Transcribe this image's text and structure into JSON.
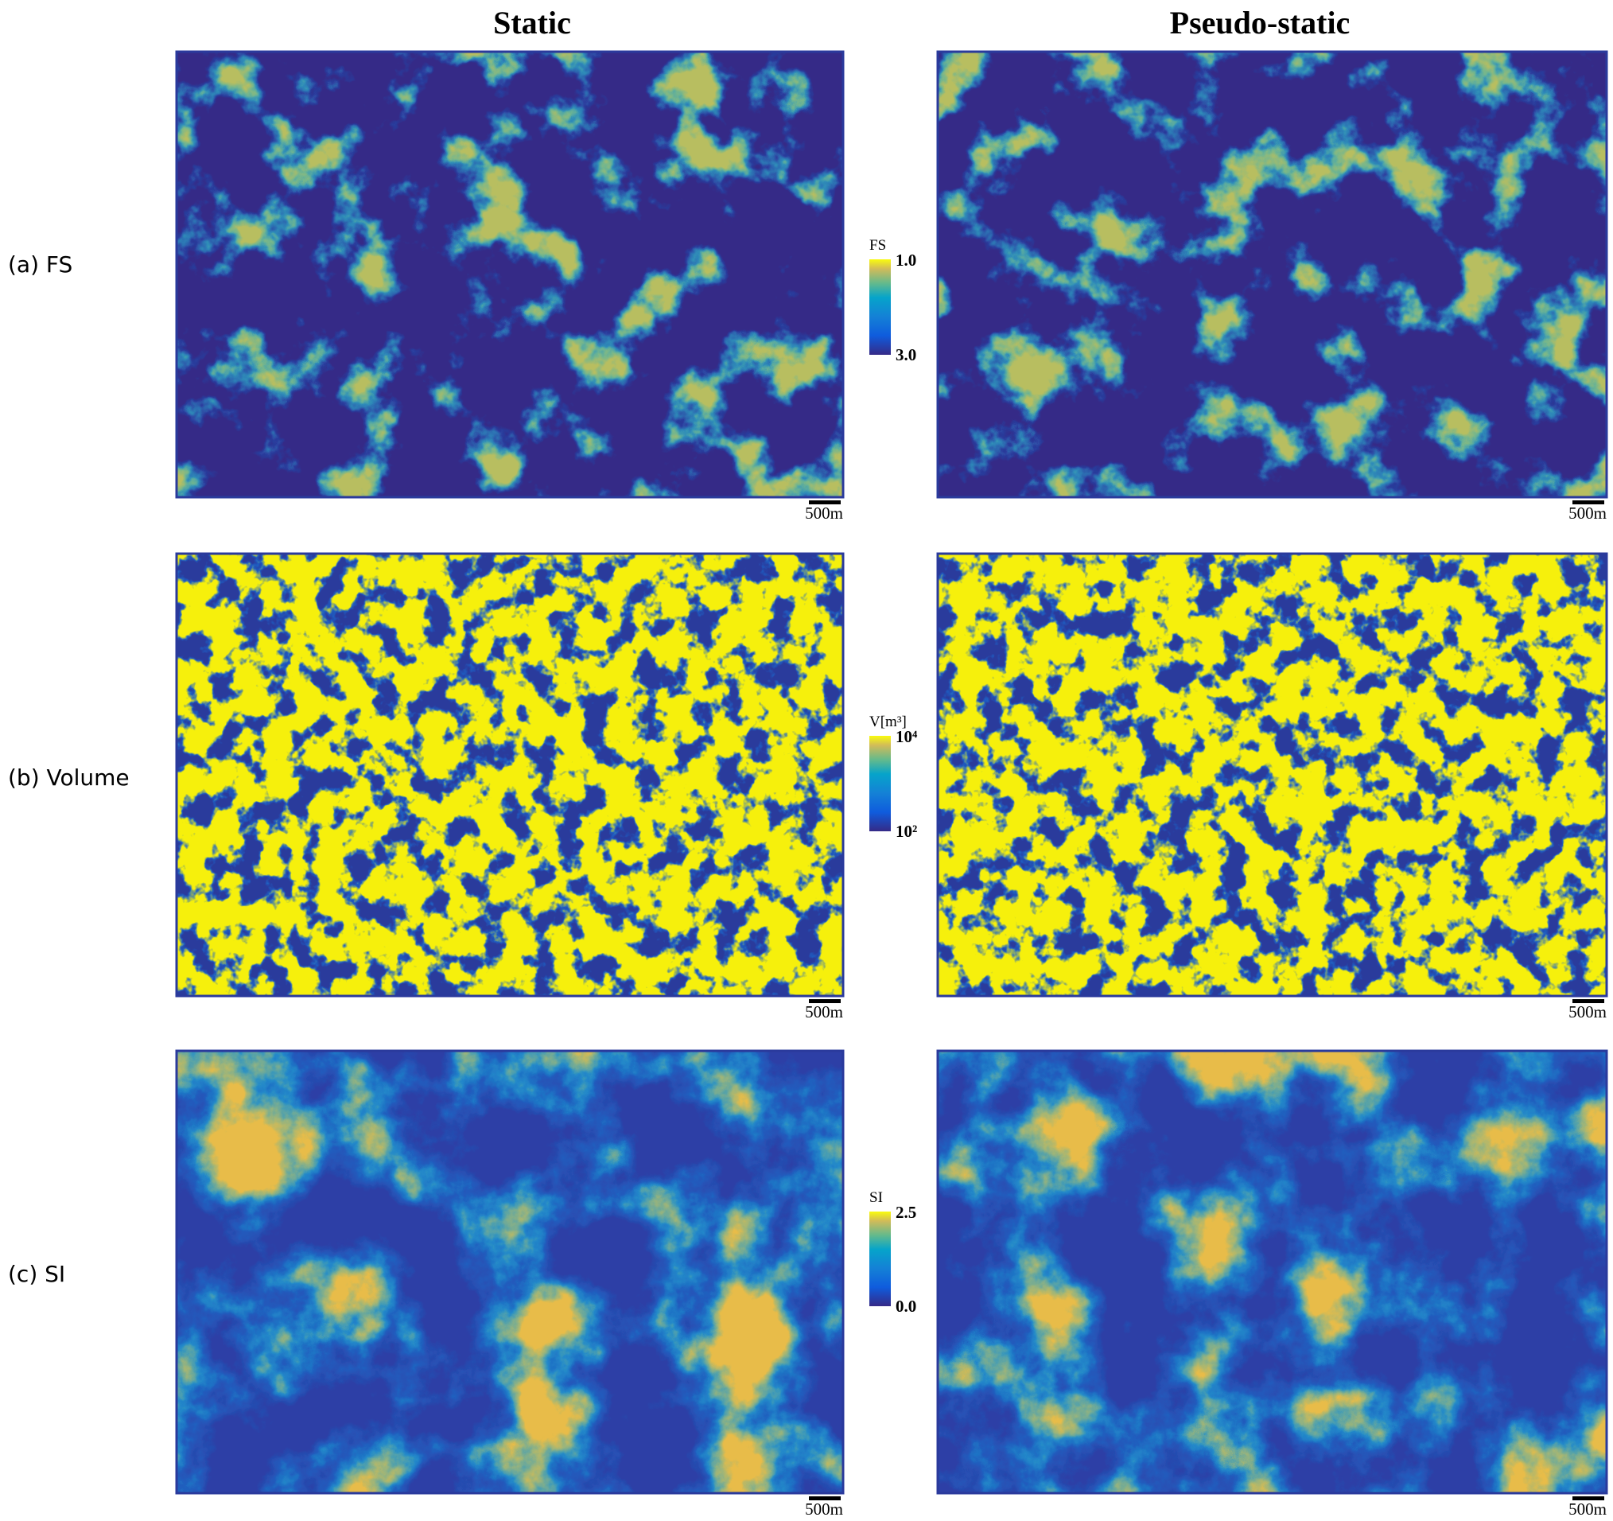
{
  "columns": [
    "Static",
    "Pseudo-static"
  ],
  "rows": [
    {
      "label": "(a) FS",
      "colorbar": {
        "title": "FS",
        "top": "1.0",
        "bottom": "3.0"
      }
    },
    {
      "label": "(b) Volume",
      "colorbar": {
        "title": "V[m³]",
        "top": "10⁴",
        "bottom": "10²"
      }
    },
    {
      "label": "(c) SI",
      "colorbar": {
        "title": "SI",
        "top": "2.5",
        "bottom": "0.0"
      }
    }
  ],
  "scale_bar": "500m"
}
